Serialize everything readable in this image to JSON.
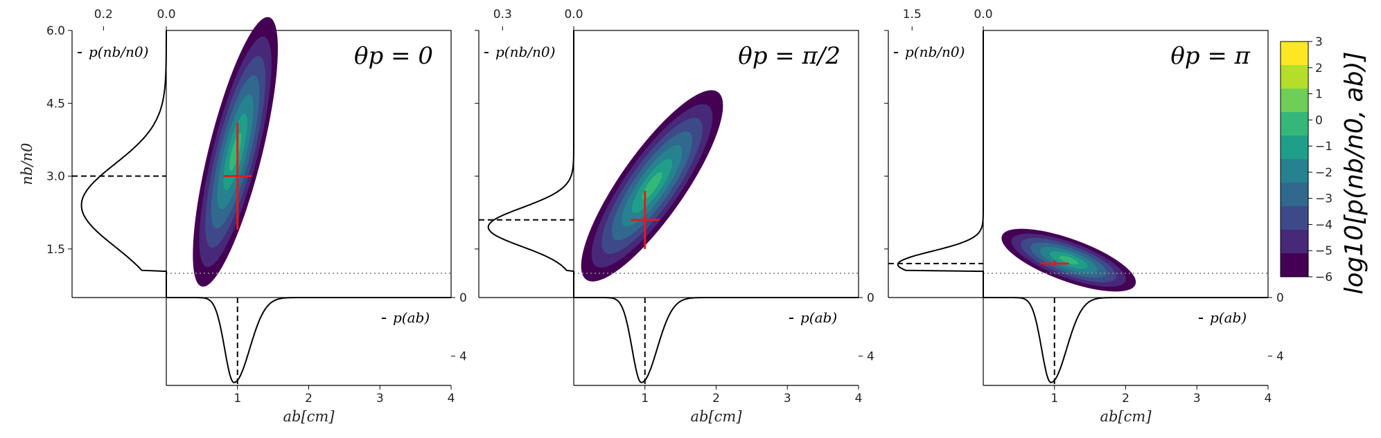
{
  "chart_data": {
    "type": "contour",
    "colorbar": {
      "label": "log10[p(nb/n0, ab)]",
      "ticks": [
        "3",
        "2",
        "1",
        "0",
        "−1",
        "−2",
        "−3",
        "−4",
        "−5",
        "−6"
      ],
      "range": [
        -6,
        3
      ],
      "colors": [
        "#440154",
        "#482878",
        "#3e4989",
        "#31688e",
        "#26828e",
        "#1f9e89",
        "#35b779",
        "#6ece58",
        "#b5de2b",
        "#fde725"
      ]
    },
    "shared": {
      "xlabel": "ab[cm]",
      "ylabel": "nb/n0",
      "x_ticks": [
        "1",
        "2",
        "3",
        "4"
      ],
      "y_ticks": [
        "1.5",
        "3.0",
        "4.5",
        "6.0"
      ],
      "xlim": [
        0,
        4
      ],
      "ylim": [
        0.5,
        6
      ],
      "threshold_y": 1.0,
      "marginal_x_label": "p(ab)",
      "marginal_y_label": "p(nb/n0)",
      "marginal_x_ticks": [
        "0",
        "4"
      ]
    },
    "panels": [
      {
        "title": "θp = 0",
        "marginal_y_top_ticks": [
          "0.2",
          "0.0"
        ],
        "marginal_y_max": 0.3,
        "peak": {
          "x": 1.0,
          "y": 3.0,
          "x_err": 0.2,
          "y_err": 1.1
        },
        "contour_center": {
          "x": 0.97,
          "y": 3.5
        },
        "p_n_mode": 2.4,
        "p_n_mean": 3.0,
        "p_a_mode": 0.95,
        "p_a_mean": 1.0
      },
      {
        "title": "θp = π/2",
        "marginal_y_top_ticks": [
          "0.3",
          "0.0"
        ],
        "marginal_y_max": 0.4,
        "peak": {
          "x": 1.0,
          "y": 2.1,
          "x_err": 0.2,
          "y_err": 0.6
        },
        "contour_center": {
          "x": 1.1,
          "y": 2.8
        },
        "p_n_mode": 1.95,
        "p_n_mean": 2.1,
        "p_a_mode": 0.95,
        "p_a_mean": 1.0
      },
      {
        "title": "θp = π",
        "marginal_y_top_ticks": [
          "1.5",
          "0.0"
        ],
        "marginal_y_max": 2.0,
        "peak": {
          "x": 1.0,
          "y": 1.2,
          "x_err": 0.2,
          "y_err": 0.06
        },
        "contour_center": {
          "x": 1.2,
          "y": 1.27
        },
        "p_n_mode": 1.18,
        "p_n_mean": 1.2,
        "p_a_mode": 0.95,
        "p_a_mean": 1.0
      }
    ]
  }
}
